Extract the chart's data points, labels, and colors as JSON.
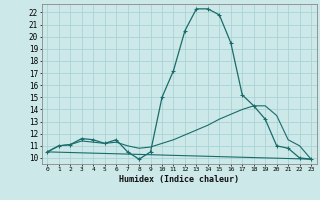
{
  "xlabel": "Humidex (Indice chaleur)",
  "bg_color": "#cde8e8",
  "line_color": "#1a6b6b",
  "grid_color": "#aad4d4",
  "x_ticks": [
    0,
    1,
    2,
    3,
    4,
    5,
    6,
    7,
    8,
    9,
    10,
    11,
    12,
    13,
    14,
    15,
    16,
    17,
    18,
    19,
    20,
    21,
    22,
    23
  ],
  "y_ticks": [
    10,
    11,
    12,
    13,
    14,
    15,
    16,
    17,
    18,
    19,
    20,
    21,
    22
  ],
  "ylim": [
    9.5,
    22.7
  ],
  "xlim": [
    -0.5,
    23.5
  ],
  "line1_x": [
    0,
    1,
    2,
    3,
    4,
    5,
    6,
    7,
    8,
    9,
    10,
    11,
    12,
    13,
    14,
    15,
    16,
    17,
    18,
    19,
    20,
    21,
    22,
    23
  ],
  "line1_y": [
    10.5,
    11.0,
    11.1,
    11.6,
    11.5,
    11.2,
    11.5,
    10.5,
    9.9,
    10.5,
    15.0,
    17.2,
    20.5,
    22.3,
    22.3,
    21.8,
    19.5,
    15.2,
    14.3,
    13.2,
    11.0,
    10.8,
    10.0,
    9.9
  ],
  "line2_x": [
    0,
    1,
    2,
    3,
    4,
    5,
    6,
    7,
    8,
    9,
    10,
    11,
    12,
    13,
    14,
    15,
    16,
    17,
    18,
    19,
    20,
    21,
    22,
    23
  ],
  "line2_y": [
    10.5,
    11.0,
    11.1,
    11.4,
    11.3,
    11.2,
    11.3,
    11.0,
    10.8,
    10.9,
    11.2,
    11.5,
    11.9,
    12.3,
    12.7,
    13.2,
    13.6,
    14.0,
    14.3,
    14.3,
    13.5,
    11.5,
    11.0,
    9.9
  ],
  "line3_x": [
    0,
    23
  ],
  "line3_y": [
    10.5,
    9.9
  ]
}
